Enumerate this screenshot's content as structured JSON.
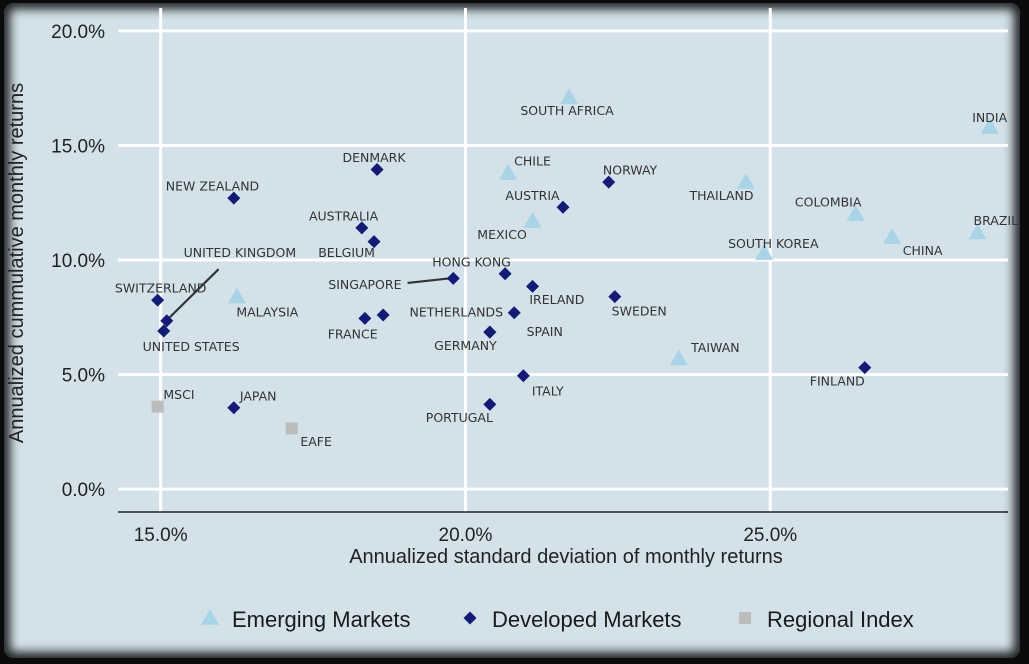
{
  "chart_data": {
    "type": "scatter",
    "xlabel": "Annualized standard deviation of monthly returns",
    "ylabel": "Annualized cummulative monthly returns",
    "xlim": [
      14.3,
      28.9
    ],
    "ylim": [
      -1.0,
      21.0
    ],
    "x_ticks": [
      {
        "value": 15,
        "label": "15.0%"
      },
      {
        "value": 20,
        "label": "20.0%"
      },
      {
        "value": 25,
        "label": "25.0%"
      }
    ],
    "y_ticks": [
      {
        "value": 0,
        "label": "0.0%"
      },
      {
        "value": 5,
        "label": "5.0%"
      },
      {
        "value": 10,
        "label": "10.0%"
      },
      {
        "value": 15,
        "label": "15.0%"
      },
      {
        "value": 20,
        "label": "20.0%"
      }
    ],
    "grid": true,
    "legend_position": "bottom",
    "series": [
      {
        "name": "Emerging Markets",
        "marker": "triangle",
        "color": "#a7d4e6",
        "points": [
          {
            "label": "SOUTH AFRICA",
            "x": 21.7,
            "y": 17.1,
            "lx": -0.8,
            "ly": -0.6,
            "anchor": "start"
          },
          {
            "label": "INDIA",
            "x": 28.6,
            "y": 15.8,
            "lx": 0.0,
            "ly": 0.4,
            "anchor": "middle"
          },
          {
            "label": "CHILE",
            "x": 20.7,
            "y": 13.8,
            "lx": 0.4,
            "ly": 0.5,
            "anchor": "middle"
          },
          {
            "label": "THAILAND",
            "x": 24.6,
            "y": 13.4,
            "lx": -0.4,
            "ly": -0.6,
            "anchor": "middle"
          },
          {
            "label": "COLOMBIA",
            "x": 26.4,
            "y": 12.0,
            "lx": -0.45,
            "ly": 0.5,
            "anchor": "middle"
          },
          {
            "label": "MEXICO",
            "x": 21.1,
            "y": 11.7,
            "lx": -0.5,
            "ly": -0.6,
            "anchor": "middle"
          },
          {
            "label": "CHINA",
            "x": 27.0,
            "y": 11.0,
            "lx": 0.5,
            "ly": -0.6,
            "anchor": "middle"
          },
          {
            "label": "BRAZIL",
            "x": 28.4,
            "y": 11.2,
            "lx": 0.3,
            "ly": 0.5,
            "anchor": "middle"
          },
          {
            "label": "SOUTH KOREA",
            "x": 24.9,
            "y": 10.3,
            "lx": 0.15,
            "ly": 0.4,
            "anchor": "middle"
          },
          {
            "label": "MALAYSIA",
            "x": 16.25,
            "y": 8.4,
            "lx": 0.5,
            "ly": -0.7,
            "anchor": "middle"
          },
          {
            "label": "TAIWAN",
            "x": 23.5,
            "y": 5.7,
            "lx": 0.6,
            "ly": 0.45,
            "anchor": "middle"
          }
        ]
      },
      {
        "name": "Developed Markets",
        "marker": "diamond",
        "color": "#141a78",
        "points": [
          {
            "label": "DENMARK",
            "x": 18.55,
            "y": 13.95,
            "lx": -0.05,
            "ly": 0.5,
            "anchor": "middle"
          },
          {
            "label": "NORWAY",
            "x": 22.35,
            "y": 13.4,
            "lx": 0.35,
            "ly": 0.5,
            "anchor": "middle"
          },
          {
            "label": "NEW ZEALAND",
            "x": 16.2,
            "y": 12.7,
            "lx": -0.35,
            "ly": 0.5,
            "anchor": "middle"
          },
          {
            "label": "AUSTRIA",
            "x": 21.6,
            "y": 12.3,
            "lx": -0.5,
            "ly": 0.5,
            "anchor": "middle"
          },
          {
            "label": "AUSTRALIA",
            "x": 18.3,
            "y": 11.4,
            "lx": -0.3,
            "ly": 0.5,
            "anchor": "middle"
          },
          {
            "label": "BELGIUM",
            "x": 18.5,
            "y": 10.8,
            "lx": -0.45,
            "ly": -0.5,
            "anchor": "middle"
          },
          {
            "label": "HONG KONG",
            "x": 20.65,
            "y": 9.4,
            "lx": -0.55,
            "ly": 0.5,
            "anchor": "middle"
          },
          {
            "label": "SINGAPORE",
            "x": 19.8,
            "y": 9.2,
            "lx": -1.45,
            "ly": -0.3,
            "anchor": "middle"
          },
          {
            "label": "IRELAND",
            "x": 21.1,
            "y": 8.85,
            "lx": 0.4,
            "ly": -0.6,
            "anchor": "middle"
          },
          {
            "label": "SWITZERLAND",
            "x": 14.95,
            "y": 8.25,
            "lx": 0.05,
            "ly": 0.5,
            "anchor": "middle"
          },
          {
            "label": "SWEDEN",
            "x": 22.45,
            "y": 8.4,
            "lx": 0.4,
            "ly": -0.65,
            "anchor": "middle"
          },
          {
            "label": "NETHERLANDS",
            "x": 20.8,
            "y": 7.7,
            "lx": -0.95,
            "ly": 0.0,
            "anchor": "middle"
          },
          {
            "label": "FRANCE",
            "x": 18.35,
            "y": 7.45,
            "lx": -0.2,
            "ly": -0.7,
            "anchor": "middle"
          },
          {
            "label": "UNITED KINGDOM",
            "x": 15.1,
            "y": 7.35,
            "lx": 1.2,
            "ly": 2.95,
            "anchor": "middle"
          },
          {
            "label": "",
            "x": 18.65,
            "y": 7.6,
            "lx": 0,
            "ly": 0,
            "anchor": "middle"
          },
          {
            "label": "UNITED STATES",
            "x": 15.05,
            "y": 6.9,
            "lx": 0.45,
            "ly": -0.7,
            "anchor": "middle"
          },
          {
            "label": "SPAIN",
            "x": 20.4,
            "y": 6.85,
            "lx": 0.9,
            "ly": 0.0,
            "anchor": "middle"
          },
          {
            "label": "GERMANY",
            "x": 20.4,
            "y": 6.85,
            "lx": -0.4,
            "ly": -0.6,
            "anchor": "middle"
          },
          {
            "label": "ITALY",
            "x": 20.95,
            "y": 4.95,
            "lx": 0.4,
            "ly": -0.7,
            "anchor": "middle"
          },
          {
            "label": "FINLAND",
            "x": 26.55,
            "y": 5.3,
            "lx": -0.45,
            "ly": -0.6,
            "anchor": "middle"
          },
          {
            "label": "JAPAN",
            "x": 16.2,
            "y": 3.55,
            "lx": 0.4,
            "ly": 0.5,
            "anchor": "middle"
          },
          {
            "label": "PORTUGAL",
            "x": 20.4,
            "y": 3.7,
            "lx": -0.5,
            "ly": -0.6,
            "anchor": "middle"
          }
        ]
      },
      {
        "name": "Regional Index",
        "marker": "square",
        "color": "#bcbcbc",
        "points": [
          {
            "label": "MSCI",
            "x": 14.95,
            "y": 3.6,
            "lx": 0.35,
            "ly": 0.5,
            "anchor": "middle"
          },
          {
            "label": "EAFE",
            "x": 17.15,
            "y": 2.65,
            "lx": 0.4,
            "ly": -0.6,
            "anchor": "middle"
          }
        ]
      }
    ],
    "leader_lines": [
      {
        "from": "UNITED KINGDOM",
        "x1": 15.95,
        "y1": 9.6,
        "x2": 15.15,
        "y2": 7.5
      },
      {
        "from": "SINGAPORE",
        "x1": 19.05,
        "y1": 9.0,
        "x2": 19.75,
        "y2": 9.2
      }
    ]
  }
}
